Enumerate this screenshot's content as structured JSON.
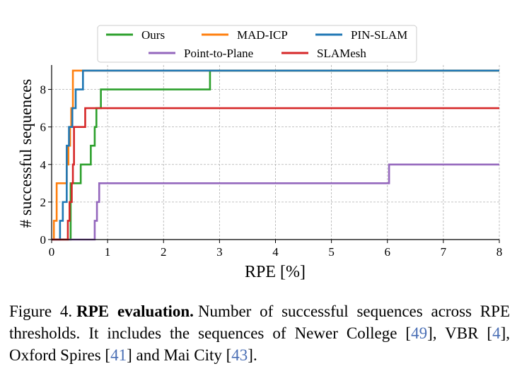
{
  "chart_data": {
    "type": "line",
    "step": true,
    "xlabel": "RPE [%]",
    "ylabel": "# successful sequences",
    "xlim": [
      0,
      8
    ],
    "ylim": [
      0,
      9.3
    ],
    "xticks": [
      0,
      1,
      2,
      3,
      4,
      5,
      6,
      7,
      8
    ],
    "yticks": [
      0,
      2,
      4,
      6,
      8
    ],
    "grid": true,
    "legend_position": "top-center",
    "series": [
      {
        "name": "Ours",
        "color": "#2ca02c",
        "x": [
          0.0,
          0.34,
          0.4,
          0.52,
          0.7,
          0.77,
          0.8,
          0.88,
          2.83,
          8.0
        ],
        "y": [
          0,
          3,
          3,
          4,
          5,
          6,
          7,
          8,
          9,
          9
        ]
      },
      {
        "name": "MAD-ICP",
        "color": "#ff7f0e",
        "x": [
          0.0,
          0.04,
          0.09,
          0.27,
          0.3,
          0.33,
          0.35,
          0.38,
          8.0
        ],
        "y": [
          0,
          1,
          3,
          4,
          5,
          6,
          7,
          9,
          9
        ]
      },
      {
        "name": "PIN-SLAM",
        "color": "#1f77b4",
        "x": [
          0.0,
          0.15,
          0.2,
          0.27,
          0.31,
          0.37,
          0.43,
          0.56,
          8.0
        ],
        "y": [
          0,
          1,
          2,
          5,
          6,
          7,
          8,
          9,
          9
        ]
      },
      {
        "name": "Point-to-Plane",
        "color": "#9467bd",
        "x": [
          0.0,
          0.73,
          0.77,
          0.81,
          0.85,
          6.03,
          8.0
        ],
        "y": [
          0,
          0,
          1,
          2,
          3,
          4,
          4
        ]
      },
      {
        "name": "SLAMesh",
        "color": "#d62728",
        "x": [
          0.0,
          0.26,
          0.29,
          0.32,
          0.36,
          0.38,
          0.4,
          0.6,
          8.0
        ],
        "y": [
          0,
          0,
          1,
          2,
          3,
          4,
          6,
          7,
          7
        ]
      }
    ]
  },
  "caption": {
    "label": "Figure 4.",
    "title": "RPE evaluation.",
    "text_1": "Number of successful sequences across RPE thresholds. It includes the sequences of Newer College [",
    "ref_1": "49",
    "text_2": "], VBR [",
    "ref_2": "4",
    "text_3": "], Oxford Spires [",
    "ref_3": "41",
    "text_4": "] and Mai City [",
    "ref_4": "43",
    "text_5": "]."
  }
}
